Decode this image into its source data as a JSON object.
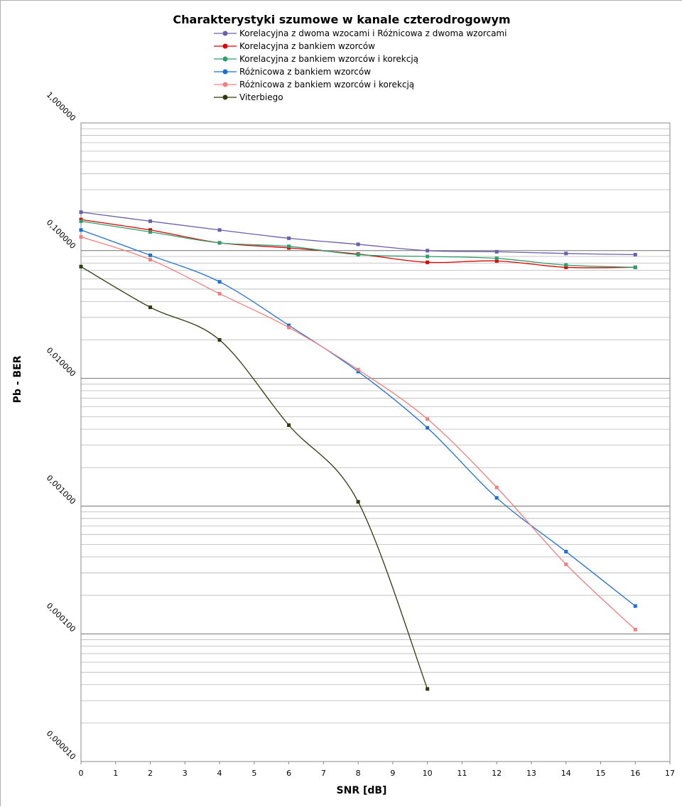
{
  "chart_data": {
    "type": "line",
    "title": "Charakterystyki szumowe w kanale czterodrogowym",
    "xlabel": "SNR [dB]",
    "ylabel": "Pb - BER",
    "xlim": [
      0,
      17
    ],
    "ylim": [
      1e-05,
      1
    ],
    "yscale": "log",
    "grid": true,
    "legend_position": "top-center",
    "x_ticks": [
      "0",
      "1",
      "2",
      "3",
      "4",
      "5",
      "6",
      "7",
      "8",
      "9",
      "10",
      "11",
      "12",
      "13",
      "14",
      "15",
      "16",
      "17"
    ],
    "y_ticks": [
      "1,000000",
      "0,100000",
      "0,010000",
      "0,001000",
      "0,000100",
      "0,000010"
    ],
    "series": [
      {
        "name": "Korelacyjna z dwoma wzocami i Różnicowa z dwoma wzorcami",
        "color": "#6a5fa8",
        "x": [
          0,
          2,
          4,
          6,
          8,
          10,
          12,
          14,
          16
        ],
        "y": [
          0.2,
          0.17,
          0.145,
          0.125,
          0.112,
          0.1,
          0.098,
          0.095,
          0.093
        ]
      },
      {
        "name": "Korelacyjna z bankiem wzorców",
        "color": "#dd0000",
        "x": [
          0,
          2,
          4,
          6,
          8,
          10,
          12,
          14,
          16
        ],
        "y": [
          0.175,
          0.145,
          0.115,
          0.105,
          0.094,
          0.081,
          0.083,
          0.074,
          0.074
        ]
      },
      {
        "name": "Korelacyjna z bankiem wzorców i korekcją",
        "color": "#2f9e6a",
        "x": [
          0,
          2,
          4,
          6,
          8,
          10,
          12,
          14,
          16
        ],
        "y": [
          0.17,
          0.14,
          0.115,
          0.108,
          0.093,
          0.09,
          0.087,
          0.077,
          0.074
        ]
      },
      {
        "name": "Różnicowa z bankiem wzorców",
        "color": "#1f6fcf",
        "x": [
          0,
          2,
          4,
          6,
          8,
          10,
          12,
          14,
          16
        ],
        "y": [
          0.145,
          0.092,
          0.057,
          0.026,
          0.0113,
          0.0041,
          0.00116,
          0.00044,
          0.000165
        ]
      },
      {
        "name": "Różnicowa z bankiem wzorców i korekcją",
        "color": "#f08080",
        "x": [
          0,
          2,
          4,
          6,
          8,
          10,
          12,
          14,
          16
        ],
        "y": [
          0.128,
          0.085,
          0.046,
          0.025,
          0.0117,
          0.0048,
          0.0014,
          0.00035,
          0.000108
        ]
      },
      {
        "name": "Viterbiego",
        "color": "#2d3a0e",
        "x": [
          0,
          2,
          4,
          6,
          8,
          10
        ],
        "y": [
          0.075,
          0.036,
          0.02,
          0.0043,
          0.00108,
          3.7e-05
        ]
      }
    ]
  }
}
